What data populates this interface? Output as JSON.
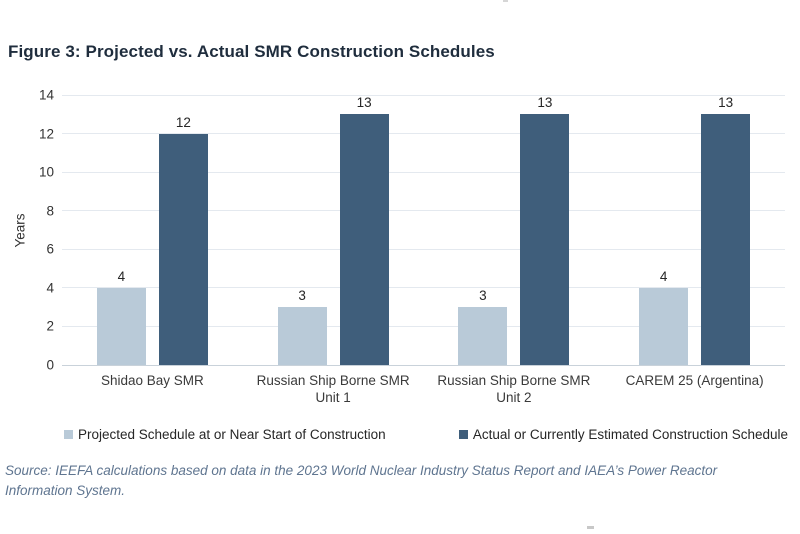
{
  "page": {
    "title": "Figure 3: Projected vs. Actual SMR Construction Schedules",
    "source_note": "Source: IEEFA calculations based on data in the 2023 World Nuclear Industry Status Report and IAEA’s Power Reactor Information System."
  },
  "chart_data": {
    "type": "bar",
    "title": "Figure 3: Projected vs. Actual SMR Construction Schedules",
    "categories": [
      "Shidao Bay SMR",
      "Russian Ship Borne SMR\nUnit 1",
      "Russian Ship Borne SMR\nUnit 2",
      "CAREM 25 (Argentina)"
    ],
    "series": [
      {
        "name": "Projected Schedule at or Near Start of Construction",
        "color": "#b9cad8",
        "values": [
          4,
          3,
          3,
          4
        ]
      },
      {
        "name": "Actual or Currently Estimated Construction Schedule",
        "color": "#3f5e7b",
        "values": [
          12,
          13,
          13,
          13
        ]
      }
    ],
    "ylabel": "Years",
    "ylim": [
      0,
      14
    ],
    "yticks": [
      0,
      2,
      4,
      6,
      8,
      10,
      12,
      14
    ],
    "grid": true,
    "legend_position": "bottom",
    "data_labels": true,
    "colors": {
      "gridline": "#e4e9ef",
      "axis_line": "#c9d2da",
      "tick_label": "#333333",
      "data_label": "#262626",
      "category_label": "#3a3a3a",
      "title": "#1f2d3d",
      "source": "#5f7590"
    }
  }
}
